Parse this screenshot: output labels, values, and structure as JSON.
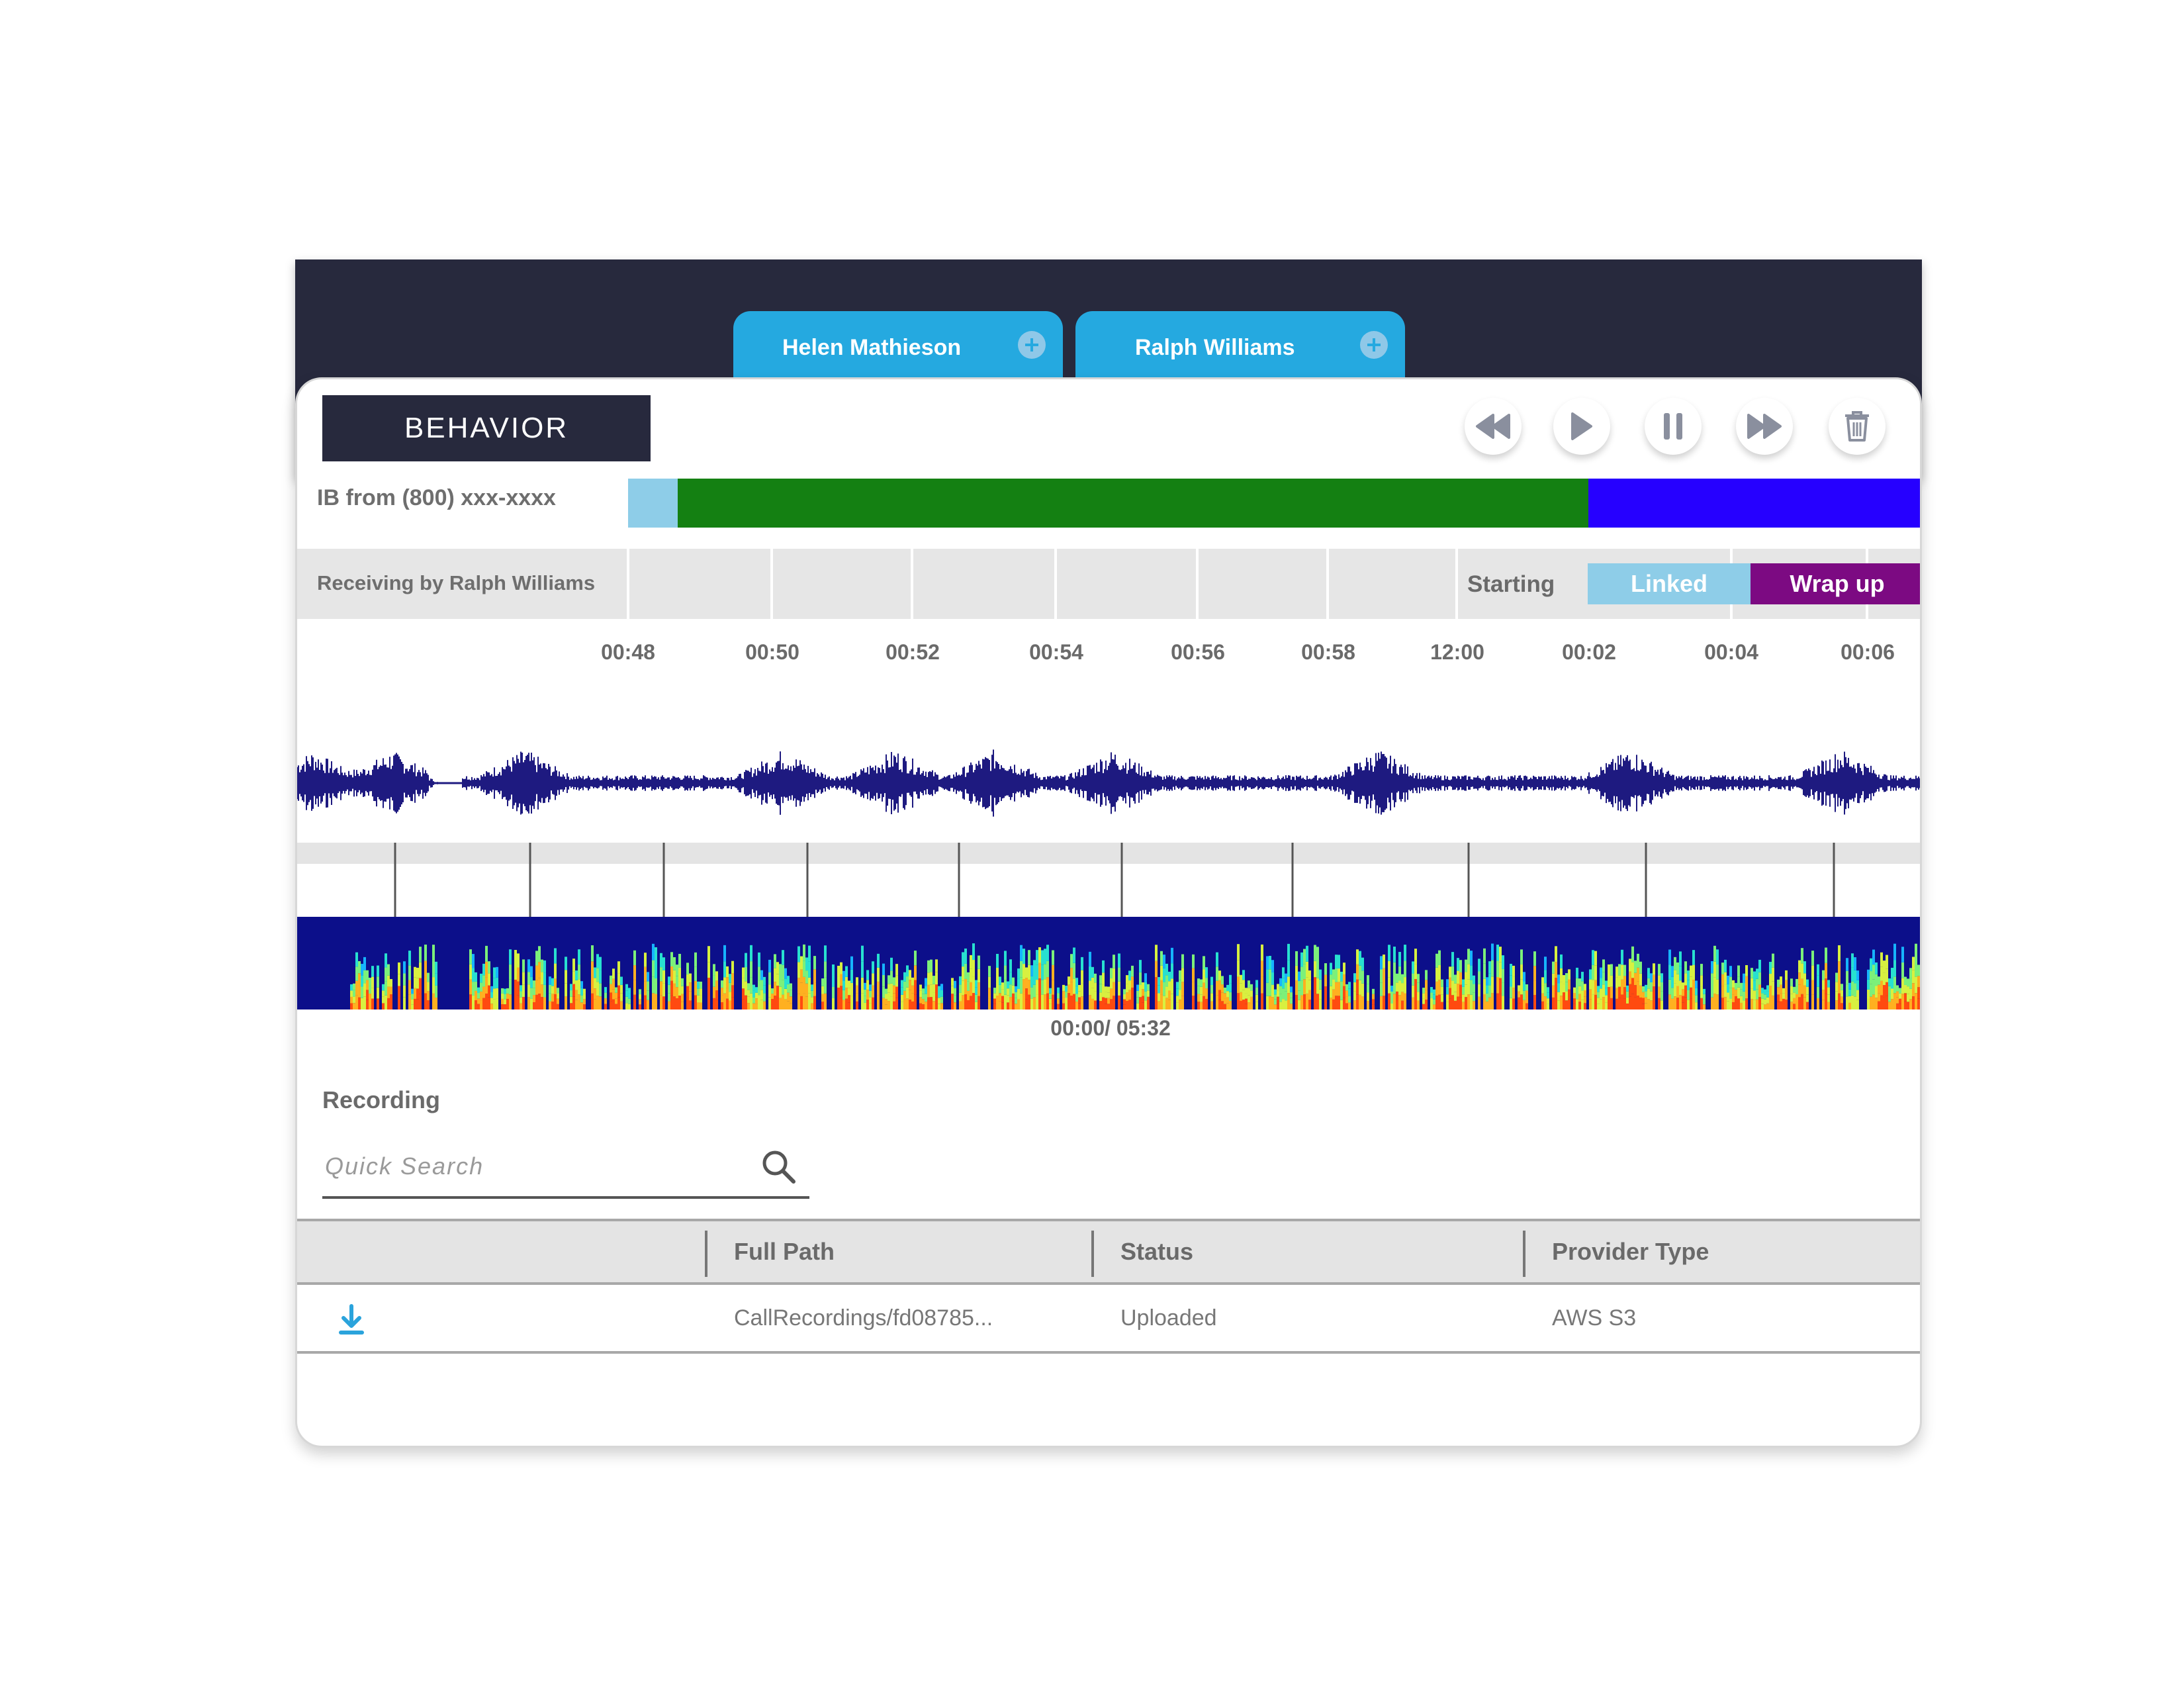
{
  "tabs": [
    {
      "label": "Helen Mathieson"
    },
    {
      "label": "Ralph Williams"
    }
  ],
  "panel": {
    "title": "BEHAVIOR"
  },
  "controls": {
    "rewind": "rewind-icon",
    "play": "play-icon",
    "pause": "pause-icon",
    "fast_forward": "fast-forward-icon",
    "delete": "trash-icon"
  },
  "call": {
    "label": "IB from (800) xxx-xxxx"
  },
  "receiving": {
    "label": "Receiving by Ralph Williams"
  },
  "status": {
    "starting": "Starting",
    "linked": "Linked",
    "wrap_up": "Wrap up"
  },
  "colors": {
    "dark": "#27293d",
    "tab_blue": "#25a9e0",
    "seg_light_blue": "#8ecde8",
    "seg_green": "#148012",
    "seg_blue": "#2600ff",
    "linked": "#8ecde8",
    "wrap_up": "#7c0a82",
    "waveform": "#1e1a80",
    "spectrogram_bg": "#0c0f8a"
  },
  "timeline": {
    "ticks": [
      "00:48",
      "00:50",
      "00:52",
      "00:54",
      "00:56",
      "00:58",
      "12:00",
      "00:02",
      "00:04",
      "00:06"
    ],
    "readout": "00:00/ 05:32"
  },
  "recording": {
    "label": "Recording",
    "search_placeholder": "Quick Search",
    "columns": [
      "Full Path",
      "Status",
      "Provider Type"
    ],
    "rows": [
      {
        "full_path": "CallRecordings/fd08785...",
        "status": "Uploaded",
        "provider_type": "AWS S3"
      }
    ]
  }
}
